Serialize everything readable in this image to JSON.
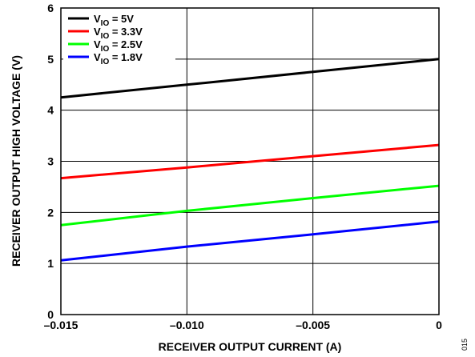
{
  "chart_data": {
    "type": "line",
    "xlabel": "RECEIVER OUTPUT CURRENT (A)",
    "ylabel": "RECEIVER OUTPUT HIGH VOLTAGE (V)",
    "xlim": [
      -0.015,
      0
    ],
    "ylim": [
      0,
      6
    ],
    "x_ticks": [
      -0.015,
      -0.01,
      -0.005,
      0
    ],
    "x_tick_labels": [
      "–0.015",
      "–0.010",
      "–0.005",
      "0"
    ],
    "y_ticks": [
      0,
      1,
      2,
      3,
      4,
      5,
      6
    ],
    "y_tick_labels": [
      "0",
      "1",
      "2",
      "3",
      "4",
      "5",
      "6"
    ],
    "grid": true,
    "legend_position": "top-left",
    "series": [
      {
        "name": "VIO = 5V",
        "legend_main": "V",
        "legend_sub": "IO",
        "legend_rest": " = 5V",
        "color": "#000000",
        "x": [
          -0.015,
          -0.01,
          -0.005,
          0
        ],
        "y": [
          4.25,
          4.5,
          4.75,
          5.0
        ]
      },
      {
        "name": "VIO = 3.3V",
        "legend_main": "V",
        "legend_sub": "IO",
        "legend_rest": " = 3.3V",
        "color": "#ff0000",
        "x": [
          -0.015,
          -0.01,
          -0.005,
          0
        ],
        "y": [
          2.67,
          2.88,
          3.1,
          3.32
        ]
      },
      {
        "name": "VIO = 2.5V",
        "legend_main": "V",
        "legend_sub": "IO",
        "legend_rest": " = 2.5V",
        "color": "#00ff00",
        "x": [
          -0.015,
          -0.01,
          -0.005,
          0
        ],
        "y": [
          1.75,
          2.03,
          2.28,
          2.52
        ]
      },
      {
        "name": "VIO = 1.8V",
        "legend_main": "V",
        "legend_sub": "IO",
        "legend_rest": " = 1.8V",
        "color": "#0000ff",
        "x": [
          -0.015,
          -0.01,
          -0.005,
          0
        ],
        "y": [
          1.06,
          1.33,
          1.57,
          1.82
        ]
      }
    ]
  },
  "figure_id": "015"
}
